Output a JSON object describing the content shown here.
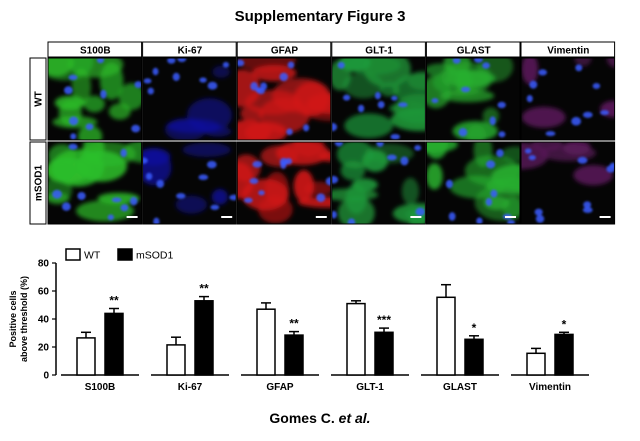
{
  "figure": {
    "title": "Supplementary Figure 3",
    "author_prefix": "Gomes C. ",
    "author_suffix": "et al."
  },
  "micrographs": {
    "columns": [
      "S100B",
      "Ki-67",
      "GFAP",
      "GLT-1",
      "GLAST",
      "Vimentin"
    ],
    "rows": [
      "WT",
      "mSOD1"
    ],
    "palette": {
      "S100B": "#2dbf2a",
      "Ki-67": "#1010a0",
      "GFAP": "#d01818",
      "GLT-1": "#1f9a3a",
      "GLAST": "#28b030",
      "Vimentin": "#5a1a5a"
    }
  },
  "chart_data": {
    "type": "bar",
    "ylabel_line1": "Positive cells",
    "ylabel_line2": "above threshold (%)",
    "ylim": [
      0,
      80
    ],
    "yticks": [
      0,
      20,
      40,
      60,
      80
    ],
    "categories": [
      "S100B",
      "Ki-67",
      "GFAP",
      "GLT-1",
      "GLAST",
      "Vimentin"
    ],
    "legend_position": "top-left",
    "series": [
      {
        "name": "WT",
        "color": "#ffffff",
        "values": [
          26.5,
          21.5,
          47,
          51,
          55.5,
          15.5
        ],
        "errors": [
          4,
          5.5,
          4.5,
          2,
          9,
          3.5
        ]
      },
      {
        "name": "mSOD1",
        "color": "#000000",
        "values": [
          44,
          53,
          28.5,
          30.5,
          25.5,
          29
        ],
        "errors": [
          3.5,
          3,
          2.5,
          3,
          2.5,
          1.5
        ]
      }
    ],
    "significance": [
      "**",
      "**",
      "**",
      "***",
      "*",
      "*"
    ]
  }
}
